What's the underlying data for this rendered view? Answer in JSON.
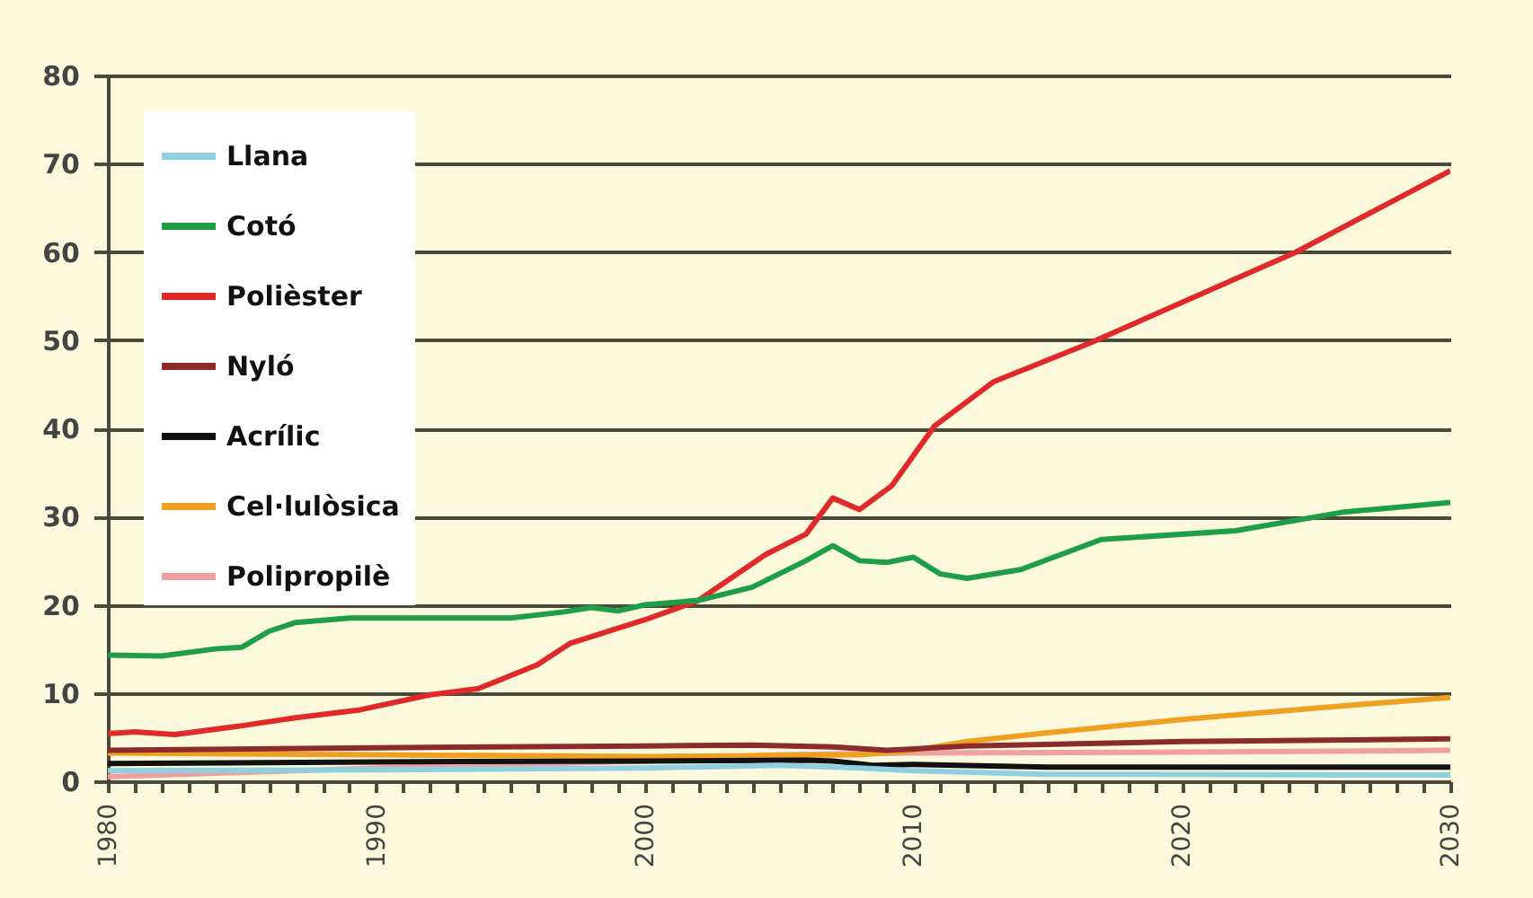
{
  "chart_data": {
    "type": "line",
    "xlim": [
      1980,
      2030
    ],
    "ylim": [
      0,
      80
    ],
    "xticks": [
      1980,
      {
        "value": 1981,
        "label": null
      },
      {
        "value": 1982,
        "label": null
      },
      {
        "value": 1983,
        "label": null
      },
      {
        "value": 1984,
        "label": null
      },
      {
        "value": 1985,
        "label": null
      },
      {
        "value": 1986,
        "label": null
      },
      {
        "value": 1987,
        "label": null
      },
      {
        "value": 1988,
        "label": null
      },
      {
        "value": 1989,
        "label": null
      },
      1990,
      {
        "value": 1991,
        "label": null
      },
      {
        "value": 1992,
        "label": null
      },
      {
        "value": 1993,
        "label": null
      },
      {
        "value": 1994,
        "label": null
      },
      {
        "value": 1995,
        "label": null
      },
      {
        "value": 1996,
        "label": null
      },
      {
        "value": 1997,
        "label": null
      },
      {
        "value": 1998,
        "label": null
      },
      {
        "value": 1999,
        "label": null
      },
      2000,
      {
        "value": 2001,
        "label": null
      },
      {
        "value": 2002,
        "label": null
      },
      {
        "value": 2003,
        "label": null
      },
      {
        "value": 2004,
        "label": null
      },
      {
        "value": 2005,
        "label": null
      },
      {
        "value": 2006,
        "label": null
      },
      {
        "value": 2007,
        "label": null
      },
      {
        "value": 2008,
        "label": null
      },
      {
        "value": 2009,
        "label": null
      },
      2010,
      {
        "value": 2011,
        "label": null
      },
      {
        "value": 2012,
        "label": null
      },
      {
        "value": 2013,
        "label": null
      },
      {
        "value": 2014,
        "label": null
      },
      {
        "value": 2015,
        "label": null
      },
      {
        "value": 2016,
        "label": null
      },
      {
        "value": 2017,
        "label": null
      },
      {
        "value": 2018,
        "label": null
      },
      {
        "value": 2019,
        "label": null
      },
      2020,
      {
        "value": 2021,
        "label": null
      },
      {
        "value": 2022,
        "label": null
      },
      {
        "value": 2023,
        "label": null
      },
      {
        "value": 2024,
        "label": null
      },
      {
        "value": 2025,
        "label": null
      },
      {
        "value": 2026,
        "label": null
      },
      {
        "value": 2027,
        "label": null
      },
      {
        "value": 2028,
        "label": null
      },
      {
        "value": 2029,
        "label": null
      },
      2030
    ],
    "yticks": [
      0,
      10,
      20,
      30,
      40,
      50,
      60,
      70,
      80
    ],
    "grid": "y",
    "legend": "top left",
    "series": [
      {
        "name": "Llana",
        "color": "#8fd0e0",
        "x": [
          1980,
          1990,
          2000,
          2005,
          2008,
          2010,
          2015,
          2030
        ],
        "values": [
          1.2,
          1.3,
          1.5,
          1.8,
          1.5,
          1.2,
          0.8,
          0.7
        ]
      },
      {
        "name": "Cotó",
        "color": "#1e9e46",
        "x": [
          1980,
          1982,
          1984,
          1985,
          1986,
          1987,
          1989,
          1992,
          1995,
          1997,
          1998,
          1999,
          2000,
          2002,
          2004,
          2006,
          2007,
          2008,
          2009,
          2010,
          2011,
          2012,
          2014,
          2017,
          2022,
          2026,
          2030
        ],
        "values": [
          14.3,
          14.2,
          15,
          15.2,
          17,
          18,
          18.5,
          18.5,
          18.5,
          19.2,
          19.7,
          19.3,
          20,
          20.5,
          22,
          25,
          26.7,
          25,
          24.8,
          25.4,
          23.5,
          23,
          24,
          27.4,
          28.4,
          30.5,
          31.6
        ]
      },
      {
        "name": "Polièster",
        "color": "#e02a2a",
        "x": [
          1980,
          1981,
          1982.5,
          1985,
          1987,
          1989.4,
          1992,
          1993.8,
          1996,
          1997.2,
          2000,
          2001.2,
          2002,
          2004.5,
          2006,
          2007,
          2008,
          2009.2,
          2010.8,
          2013,
          2016.6,
          2024.2,
          2030
        ],
        "values": [
          5.4,
          5.6,
          5.3,
          6.3,
          7.2,
          8.1,
          9.8,
          10.5,
          13.2,
          15.6,
          18.3,
          19.6,
          20.5,
          25.7,
          28,
          32.1,
          30.8,
          33.5,
          40.3,
          45.3,
          49.7,
          59.9,
          69.2
        ]
      },
      {
        "name": "Nyló",
        "color": "#8b2b2b",
        "x": [
          1980,
          1990,
          2000,
          2004,
          2007,
          2009,
          2012,
          2020,
          2030
        ],
        "values": [
          3.5,
          3.8,
          4,
          4.1,
          3.9,
          3.5,
          4,
          4.5,
          4.8
        ]
      },
      {
        "name": "Acrílic",
        "color": "#111111",
        "x": [
          1980,
          1990,
          2000,
          2006,
          2007,
          2008.5,
          2010,
          2015,
          2030
        ],
        "values": [
          2,
          2.2,
          2.3,
          2.4,
          2.3,
          1.8,
          1.9,
          1.6,
          1.6
        ]
      },
      {
        "name": "Cel·lulòsica",
        "color": "#f0a020",
        "x": [
          1980,
          1990,
          2000,
          2008,
          2010,
          2012,
          2015,
          2020,
          2025,
          2030
        ],
        "values": [
          3.2,
          3,
          2.8,
          3,
          3.5,
          4.5,
          5.5,
          7,
          8.3,
          9.5
        ]
      },
      {
        "name": "Polipropilè",
        "color": "#f0a0a0",
        "x": [
          1980,
          1990,
          2000,
          2005,
          2010,
          2020,
          2030
        ],
        "values": [
          0.5,
          1.5,
          2.3,
          3,
          3.2,
          3.3,
          3.5
        ]
      }
    ]
  }
}
